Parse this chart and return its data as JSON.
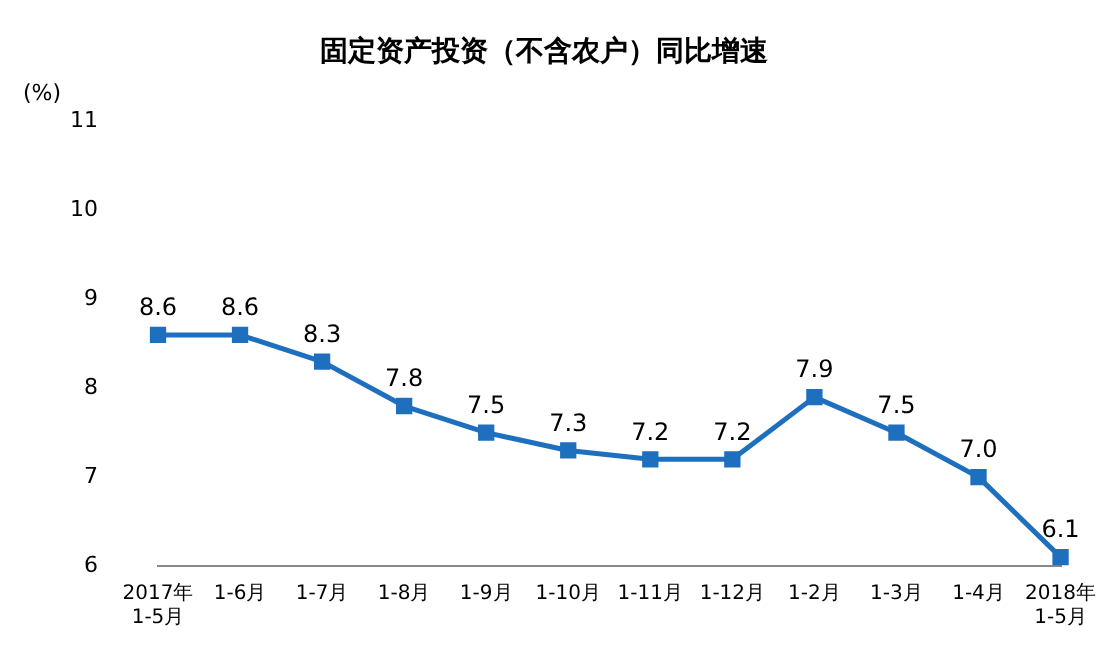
{
  "chart_data": {
    "type": "line",
    "title": "固定资产投资（不含农户）同比增速",
    "ylabel": "(%)",
    "categories": [
      "2017年\n1-5月",
      "1-6月",
      "1-7月",
      "1-8月",
      "1-9月",
      "1-10月",
      "1-11月",
      "1-12月",
      "1-2月",
      "1-3月",
      "1-4月",
      "2018年\n1-5月"
    ],
    "series": [
      {
        "color": "#1f6fbf",
        "values": [
          8.6,
          8.6,
          8.3,
          7.8,
          7.5,
          7.3,
          7.2,
          7.2,
          7.9,
          7.5,
          7.0,
          6.1
        ],
        "value_labels": [
          "8.6",
          "8.6",
          "8.3",
          "7.8",
          "7.5",
          "7.3",
          "7.2",
          "7.2",
          "7.9",
          "7.5",
          "7.0",
          "6.1"
        ]
      }
    ],
    "ylim": [
      6,
      11
    ],
    "yticks": [
      6,
      7,
      8,
      9,
      10,
      11
    ],
    "grid": false,
    "legend": false,
    "marker": "square",
    "line_style": "solid"
  }
}
